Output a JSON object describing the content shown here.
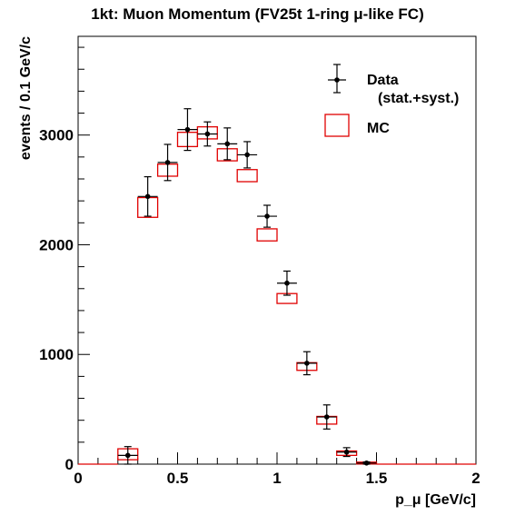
{
  "chart_data": {
    "type": "scatter",
    "title": "1kt: Muon Momentum (FV25t 1-ring μ-like FC)",
    "xlabel": "p_μ [GeV/c]",
    "ylabel": "events / 0.1 GeV/c",
    "xlim": [
      0,
      2
    ],
    "ylim": [
      0,
      3900
    ],
    "x_ticks": [
      "0",
      "0.5",
      "1",
      "1.5",
      "2"
    ],
    "y_ticks": [
      "0",
      "1000",
      "2000",
      "3000"
    ],
    "bin_width": 0.1,
    "legend_position": "top-right",
    "series": [
      {
        "name": "Data",
        "label_sub": "(stat.+syst.)",
        "color": "#000000",
        "marker": "point-with-errorbars",
        "x": [
          0.25,
          0.35,
          0.45,
          0.55,
          0.65,
          0.75,
          0.85,
          0.95,
          1.05,
          1.15,
          1.25,
          1.35,
          1.45
        ],
        "y": [
          80,
          2440,
          2750,
          3050,
          3010,
          2920,
          2820,
          2260,
          1650,
          920,
          430,
          110,
          10
        ],
        "yerr": [
          80,
          180,
          165,
          190,
          110,
          145,
          120,
          100,
          110,
          105,
          110,
          40,
          10
        ]
      },
      {
        "name": "MC",
        "color": "#e00000",
        "marker": "box",
        "x": [
          0.05,
          0.15,
          0.25,
          0.35,
          0.45,
          0.55,
          0.65,
          0.75,
          0.85,
          0.95,
          1.05,
          1.15,
          1.25,
          1.35,
          1.45,
          1.55,
          1.65,
          1.75,
          1.85,
          1.95
        ],
        "y": [
          0,
          0,
          90,
          2340,
          2680,
          2960,
          3020,
          2820,
          2630,
          2090,
          1510,
          890,
          400,
          100,
          10,
          0,
          0,
          0,
          0,
          0
        ],
        "box_halfheight": [
          0,
          0,
          50,
          90,
          55,
          65,
          55,
          55,
          55,
          55,
          45,
          35,
          35,
          20,
          8,
          0,
          0,
          0,
          0,
          0
        ]
      }
    ]
  }
}
